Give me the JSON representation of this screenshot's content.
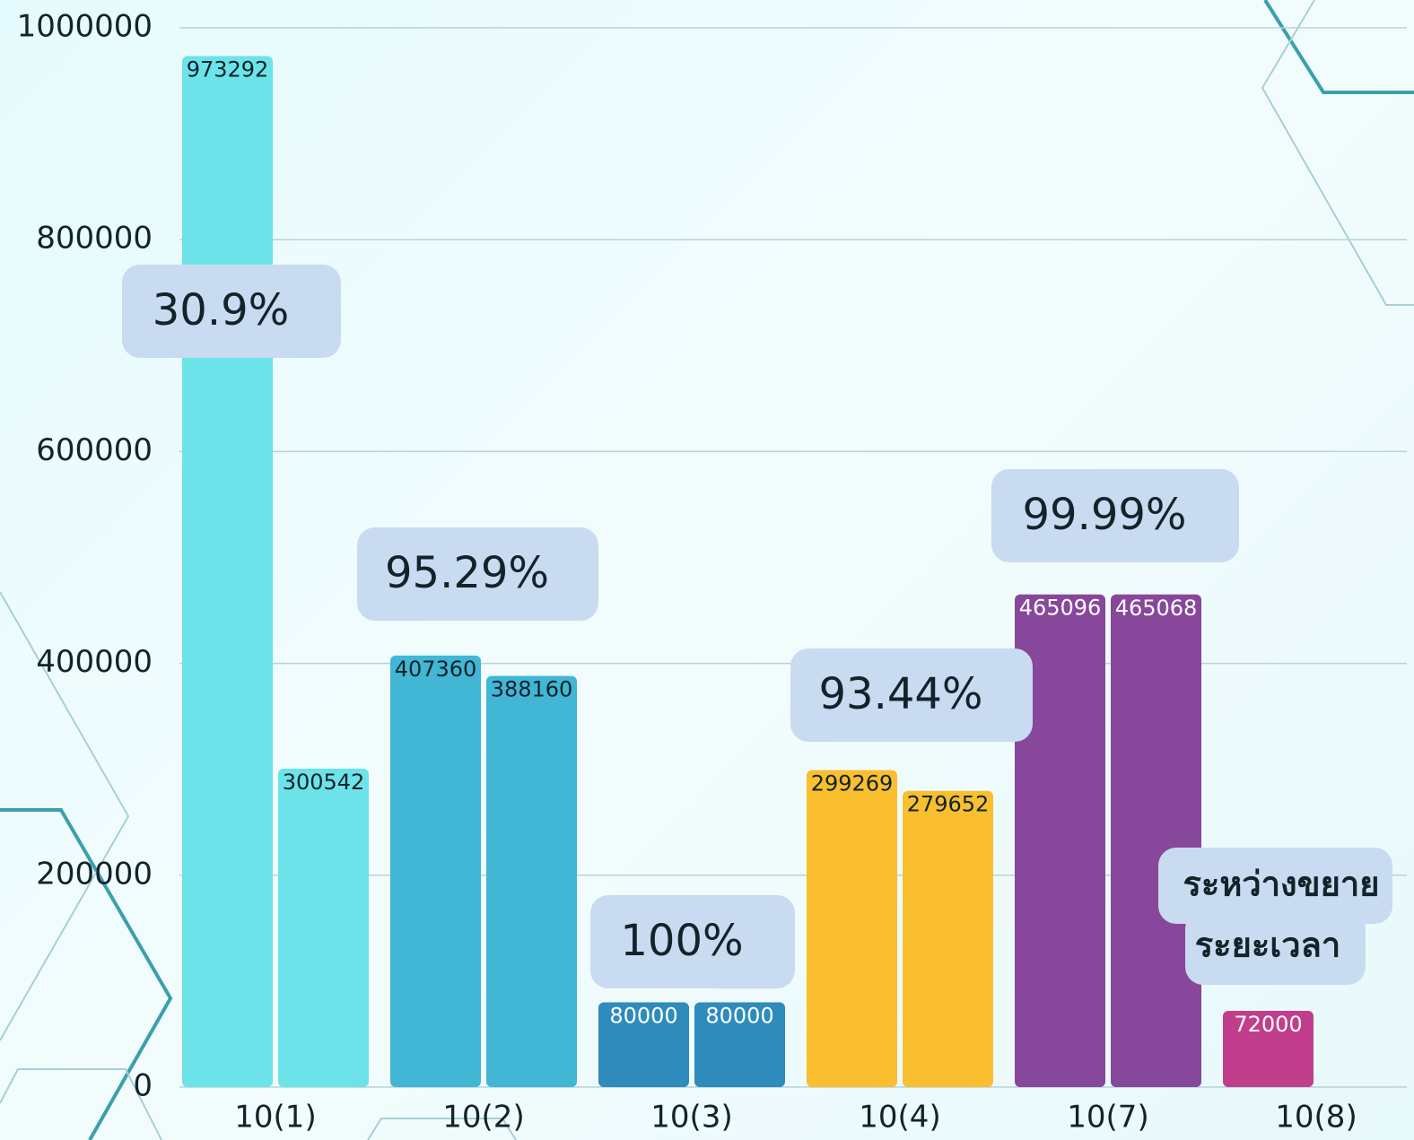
{
  "chart_data": {
    "type": "bar",
    "categories": [
      "10(1)",
      "10(2)",
      "10(3)",
      "10(4)",
      "10(7)",
      "10(8)"
    ],
    "series": [
      {
        "values": [
          973292,
          407360,
          80000,
          299269,
          465096,
          72000
        ]
      },
      {
        "values": [
          300542,
          388160,
          80000,
          279652,
          465068,
          null
        ]
      }
    ],
    "colors": [
      "#6ce3e8",
      "#41b6d5",
      "#2e8bbb",
      "#f9bf2e",
      "#87479b",
      "#c13e8c"
    ],
    "label_colors": [
      "#10242a",
      "#10242a",
      "#ffffff",
      "#10242a",
      "#ffffff",
      "#ffffff"
    ],
    "annotations": [
      [
        "30.9%"
      ],
      [
        "95.29%"
      ],
      [
        "100%"
      ],
      [
        "93.44%"
      ],
      [
        "99.99%"
      ],
      [
        "ระหว่างขยาย",
        "ระยะเวลา"
      ]
    ],
    "ylim": [
      0,
      1000000
    ],
    "yticks": [
      0,
      200000,
      400000,
      600000,
      800000,
      1000000
    ],
    "grid": true
  }
}
